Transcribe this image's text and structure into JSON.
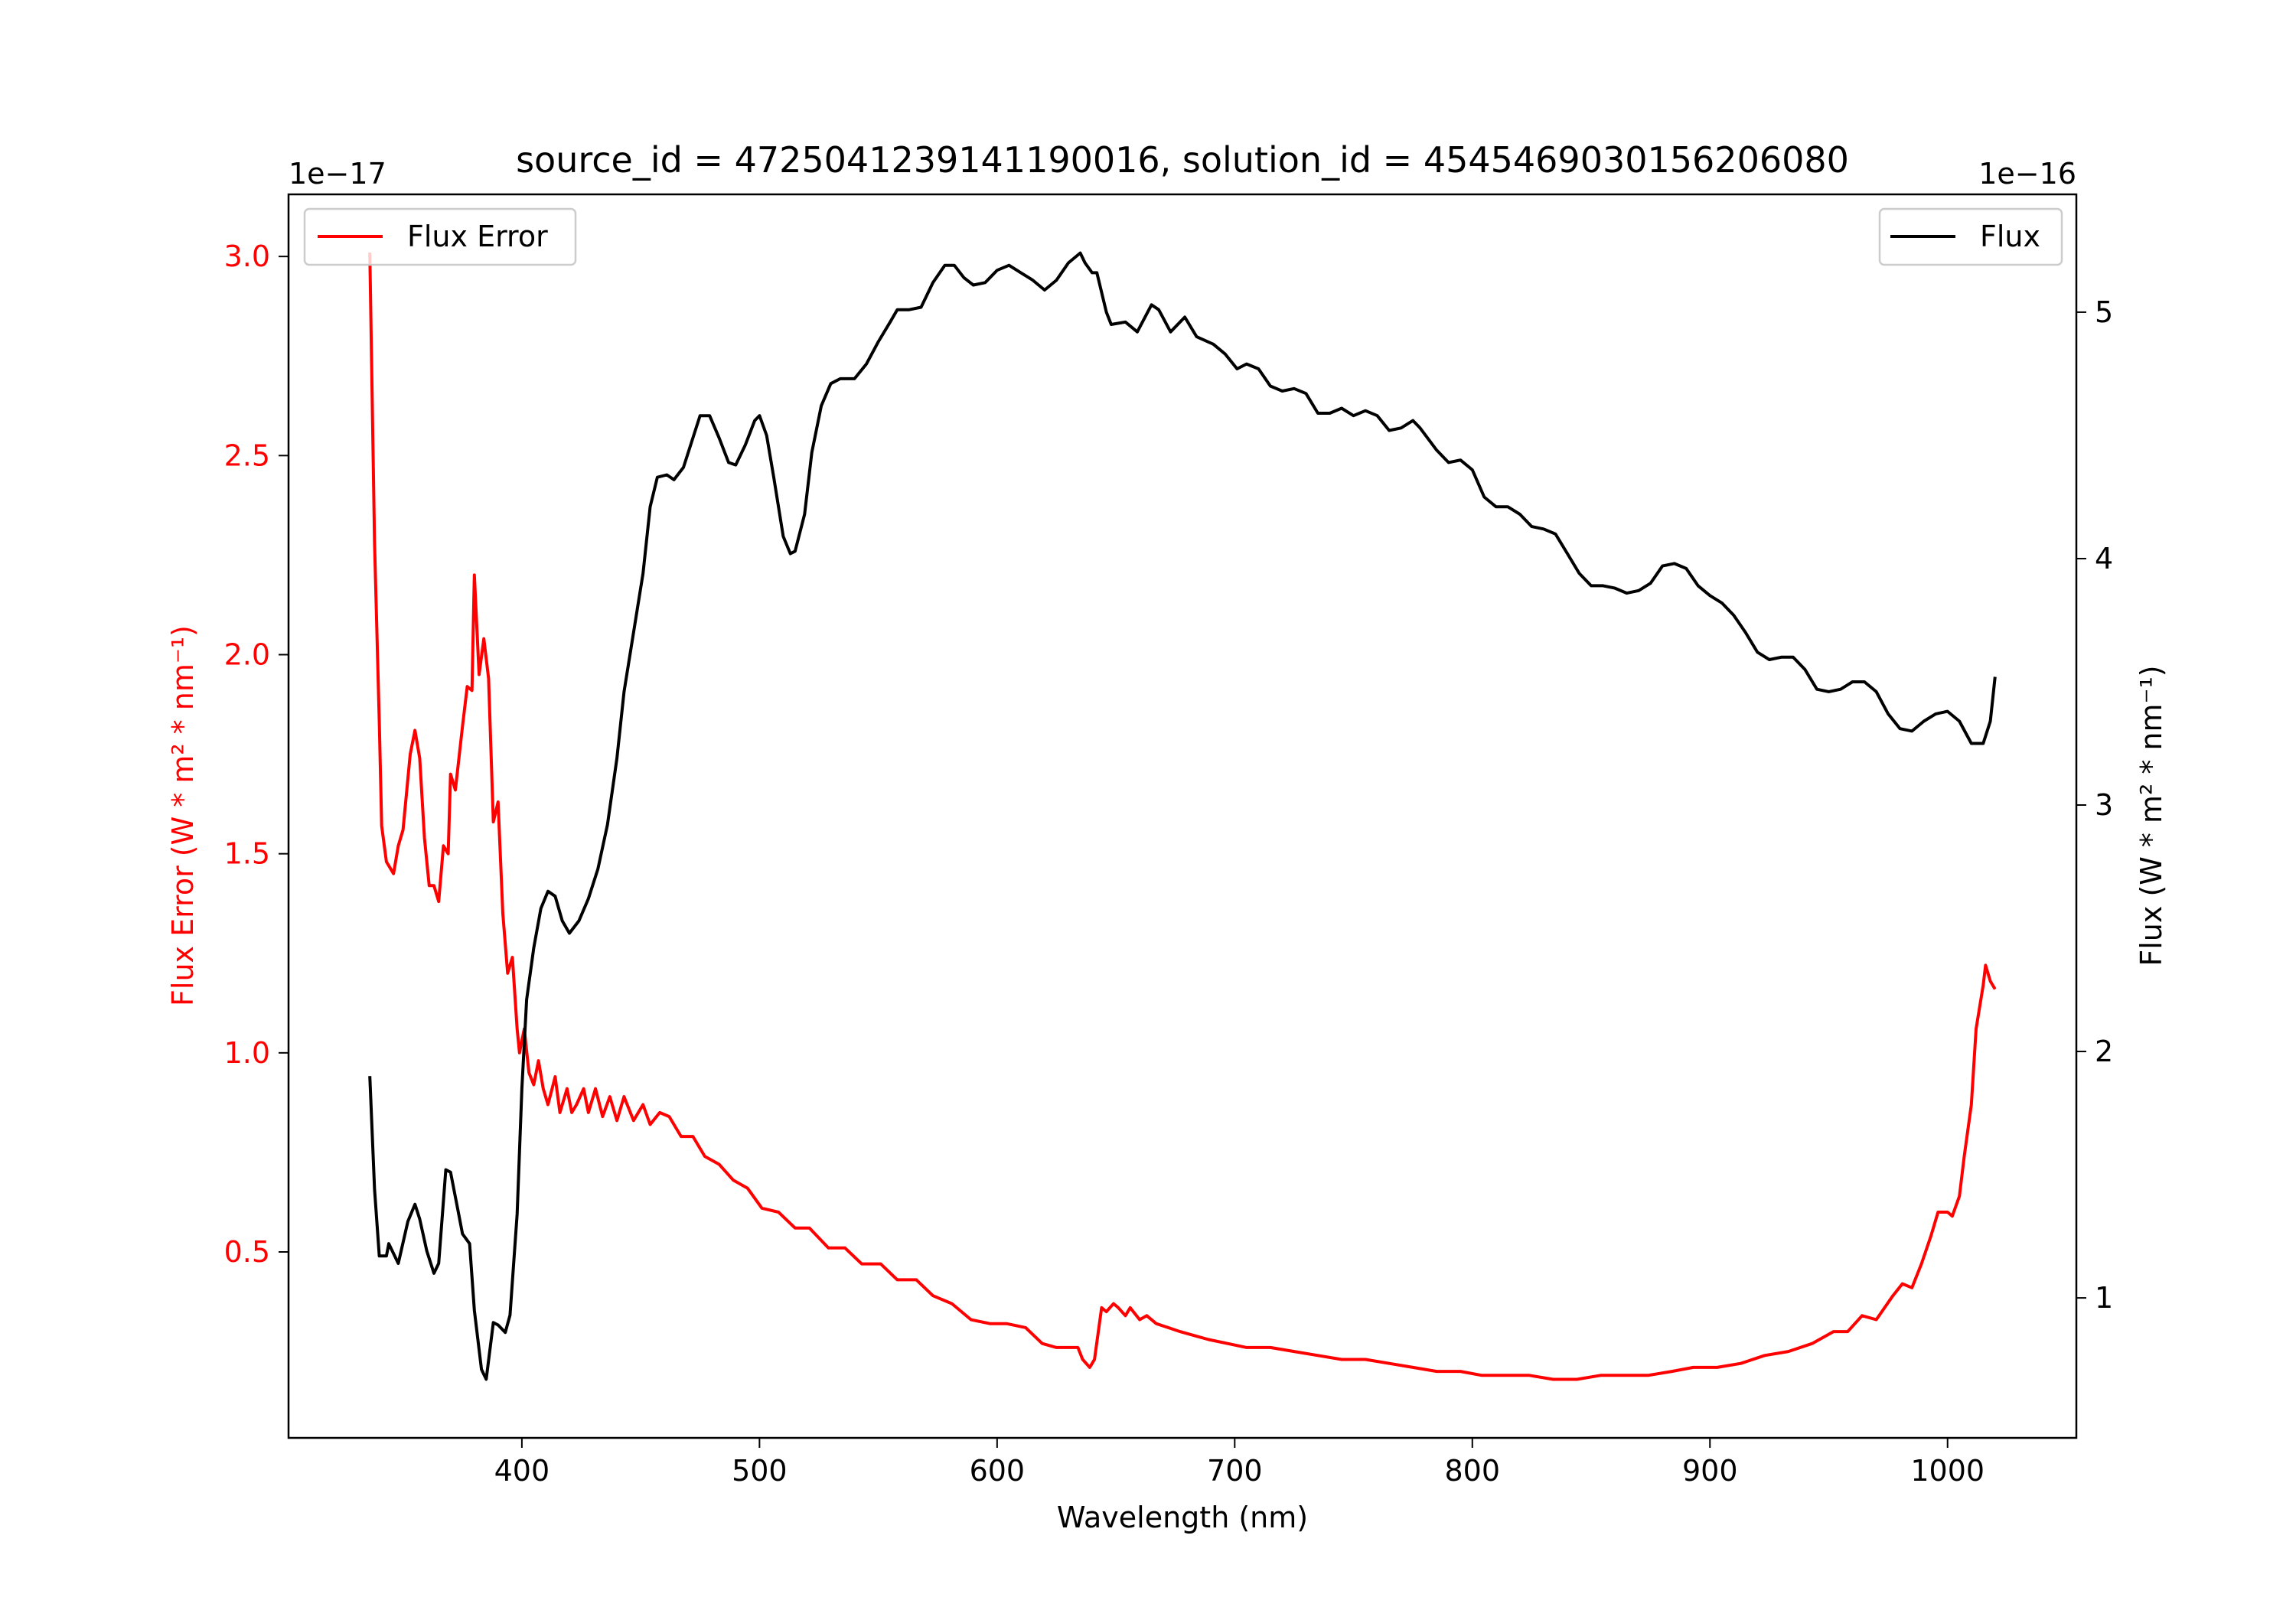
{
  "chart_data": {
    "type": "line",
    "title": "source_id = 4725041239141190016, solution_id = 4545469030156206080",
    "xlabel": "Wavelength (nm)",
    "xlim": [
      301.8,
      1054.2
    ],
    "xticks": [
      400,
      500,
      600,
      700,
      800,
      900,
      1000
    ],
    "axes": {
      "left": {
        "ylabel": "Flux Error (W * m² * nm⁻¹)",
        "offset_text": "1e−17",
        "ylim": [
          0.033,
          3.156
        ],
        "yticks": [
          0.5,
          1.0,
          1.5,
          2.0,
          2.5,
          3.0
        ],
        "ytick_labels": [
          "0.5",
          "1.0",
          "1.5",
          "2.0",
          "2.5",
          "3.0"
        ],
        "color": "#ff0000"
      },
      "right": {
        "ylabel": "Flux (W * m² * nm⁻¹)",
        "offset_text": "1e−16",
        "ylim": [
          0.432,
          5.478
        ],
        "yticks": [
          1,
          2,
          3,
          4,
          5
        ],
        "ytick_labels": [
          "1",
          "2",
          "3",
          "4",
          "5"
        ],
        "color": "#000000"
      }
    },
    "series": [
      {
        "name": "Flux Error",
        "axis": "left",
        "color": "#ff0000",
        "legend": "top-left",
        "x": [
          336,
          338,
          340,
          341,
          343,
          346,
          348,
          350,
          353,
          355,
          357,
          359,
          361,
          363,
          365,
          367,
          369,
          370,
          372,
          375,
          377,
          379,
          380,
          382,
          384,
          386,
          388,
          390,
          392,
          394,
          396,
          398,
          399,
          401,
          403,
          405,
          407,
          409,
          411,
          414,
          416,
          419,
          421,
          423,
          426,
          428,
          431,
          434,
          437,
          440,
          443,
          447,
          451,
          454,
          458,
          462,
          467,
          472,
          477,
          483,
          489,
          495,
          501,
          508,
          515,
          521,
          529,
          536,
          543,
          551,
          558,
          566,
          573,
          581,
          589,
          597,
          604,
          612,
          619,
          625,
          634,
          636,
          639,
          641,
          644,
          646,
          649,
          651,
          654,
          656,
          660,
          663,
          667,
          672,
          677,
          683,
          689,
          697,
          705,
          715,
          725,
          735,
          745,
          755,
          765,
          775,
          785,
          795,
          804,
          814,
          824,
          834,
          844,
          854,
          864,
          874,
          884,
          893,
          903,
          913,
          923,
          933,
          943,
          952,
          958,
          964,
          970,
          977,
          981,
          985,
          989,
          993,
          996,
          1000,
          1002,
          1005,
          1007,
          1010,
          1012,
          1015,
          1016,
          1018,
          1020
        ],
        "y": [
          3.01,
          2.28,
          1.83,
          1.57,
          1.48,
          1.45,
          1.52,
          1.56,
          1.75,
          1.81,
          1.74,
          1.54,
          1.42,
          1.42,
          1.38,
          1.52,
          1.5,
          1.7,
          1.66,
          1.82,
          1.92,
          1.91,
          2.2,
          1.95,
          2.04,
          1.94,
          1.58,
          1.63,
          1.35,
          1.2,
          1.24,
          1.06,
          1.0,
          1.06,
          0.95,
          0.92,
          0.98,
          0.91,
          0.87,
          0.94,
          0.85,
          0.91,
          0.85,
          0.87,
          0.91,
          0.85,
          0.91,
          0.84,
          0.89,
          0.83,
          0.89,
          0.83,
          0.87,
          0.82,
          0.85,
          0.84,
          0.79,
          0.79,
          0.74,
          0.72,
          0.68,
          0.66,
          0.61,
          0.6,
          0.56,
          0.56,
          0.51,
          0.51,
          0.47,
          0.47,
          0.43,
          0.43,
          0.39,
          0.37,
          0.33,
          0.32,
          0.32,
          0.31,
          0.27,
          0.26,
          0.26,
          0.23,
          0.21,
          0.23,
          0.36,
          0.35,
          0.37,
          0.36,
          0.34,
          0.36,
          0.33,
          0.34,
          0.32,
          0.31,
          0.3,
          0.29,
          0.28,
          0.27,
          0.26,
          0.26,
          0.25,
          0.24,
          0.23,
          0.23,
          0.22,
          0.21,
          0.2,
          0.2,
          0.19,
          0.19,
          0.19,
          0.18,
          0.18,
          0.19,
          0.19,
          0.19,
          0.2,
          0.21,
          0.21,
          0.22,
          0.24,
          0.25,
          0.27,
          0.3,
          0.3,
          0.34,
          0.33,
          0.39,
          0.42,
          0.41,
          0.47,
          0.54,
          0.6,
          0.6,
          0.59,
          0.64,
          0.74,
          0.87,
          1.06,
          1.17,
          1.22,
          1.18,
          1.16
        ]
      },
      {
        "name": "Flux",
        "axis": "right",
        "color": "#000000",
        "legend": "top-right",
        "x": [
          336,
          338,
          340,
          343,
          344,
          348,
          352,
          355,
          357,
          360,
          363,
          365,
          368,
          370,
          373,
          375,
          378,
          380,
          383,
          385,
          388,
          390,
          393,
          395,
          398,
          400,
          402,
          405,
          408,
          411,
          414,
          417,
          420,
          424,
          428,
          432,
          436,
          440,
          443,
          447,
          451,
          454,
          457,
          461,
          464,
          468,
          472,
          475,
          479,
          483,
          487,
          490,
          494,
          498,
          500,
          503,
          506,
          510,
          513,
          515,
          519,
          522,
          526,
          530,
          534,
          540,
          545,
          550,
          555,
          558,
          563,
          568,
          573,
          578,
          582,
          586,
          590,
          595,
          600,
          605,
          610,
          615,
          620,
          625,
          630,
          635,
          637,
          640,
          642,
          646,
          648,
          654,
          659,
          665,
          668,
          673,
          679,
          684,
          691,
          696,
          701,
          705,
          710,
          715,
          720,
          725,
          730,
          735,
          740,
          745,
          750,
          755,
          760,
          765,
          770,
          775,
          778,
          785,
          790,
          795,
          800,
          805,
          810,
          815,
          820,
          825,
          830,
          835,
          840,
          845,
          850,
          855,
          860,
          865,
          870,
          875,
          880,
          885,
          890,
          895,
          900,
          905,
          910,
          915,
          920,
          925,
          930,
          935,
          940,
          945,
          950,
          955,
          960,
          965,
          970,
          975,
          980,
          985,
          990,
          995,
          1000,
          1005,
          1010,
          1015,
          1018,
          1020
        ],
        "y": [
          1.9,
          1.44,
          1.17,
          1.17,
          1.22,
          1.14,
          1.31,
          1.38,
          1.32,
          1.19,
          1.1,
          1.14,
          1.52,
          1.51,
          1.36,
          1.26,
          1.22,
          0.95,
          0.71,
          0.67,
          0.9,
          0.89,
          0.86,
          0.93,
          1.34,
          1.85,
          2.21,
          2.42,
          2.58,
          2.65,
          2.63,
          2.53,
          2.48,
          2.53,
          2.62,
          2.74,
          2.92,
          3.19,
          3.46,
          3.7,
          3.94,
          4.21,
          4.33,
          4.34,
          4.32,
          4.37,
          4.49,
          4.58,
          4.58,
          4.49,
          4.39,
          4.38,
          4.46,
          4.56,
          4.58,
          4.5,
          4.33,
          4.09,
          4.02,
          4.03,
          4.18,
          4.43,
          4.62,
          4.71,
          4.73,
          4.73,
          4.79,
          4.88,
          4.96,
          5.01,
          5.01,
          5.02,
          5.12,
          5.19,
          5.19,
          5.14,
          5.11,
          5.12,
          5.17,
          5.19,
          5.16,
          5.13,
          5.09,
          5.13,
          5.2,
          5.24,
          5.2,
          5.16,
          5.16,
          5.0,
          4.95,
          4.96,
          4.92,
          5.03,
          5.01,
          4.92,
          4.98,
          4.9,
          4.87,
          4.83,
          4.77,
          4.79,
          4.77,
          4.7,
          4.68,
          4.69,
          4.67,
          4.59,
          4.59,
          4.61,
          4.58,
          4.6,
          4.58,
          4.52,
          4.53,
          4.56,
          4.53,
          4.44,
          4.39,
          4.4,
          4.36,
          4.25,
          4.21,
          4.21,
          4.18,
          4.13,
          4.12,
          4.1,
          4.02,
          3.94,
          3.89,
          3.89,
          3.88,
          3.86,
          3.87,
          3.9,
          3.97,
          3.98,
          3.96,
          3.89,
          3.85,
          3.82,
          3.77,
          3.7,
          3.62,
          3.59,
          3.6,
          3.6,
          3.55,
          3.47,
          3.46,
          3.47,
          3.5,
          3.5,
          3.46,
          3.37,
          3.31,
          3.3,
          3.34,
          3.37,
          3.38,
          3.34,
          3.25,
          3.25,
          3.34,
          3.52
        ]
      }
    ]
  }
}
